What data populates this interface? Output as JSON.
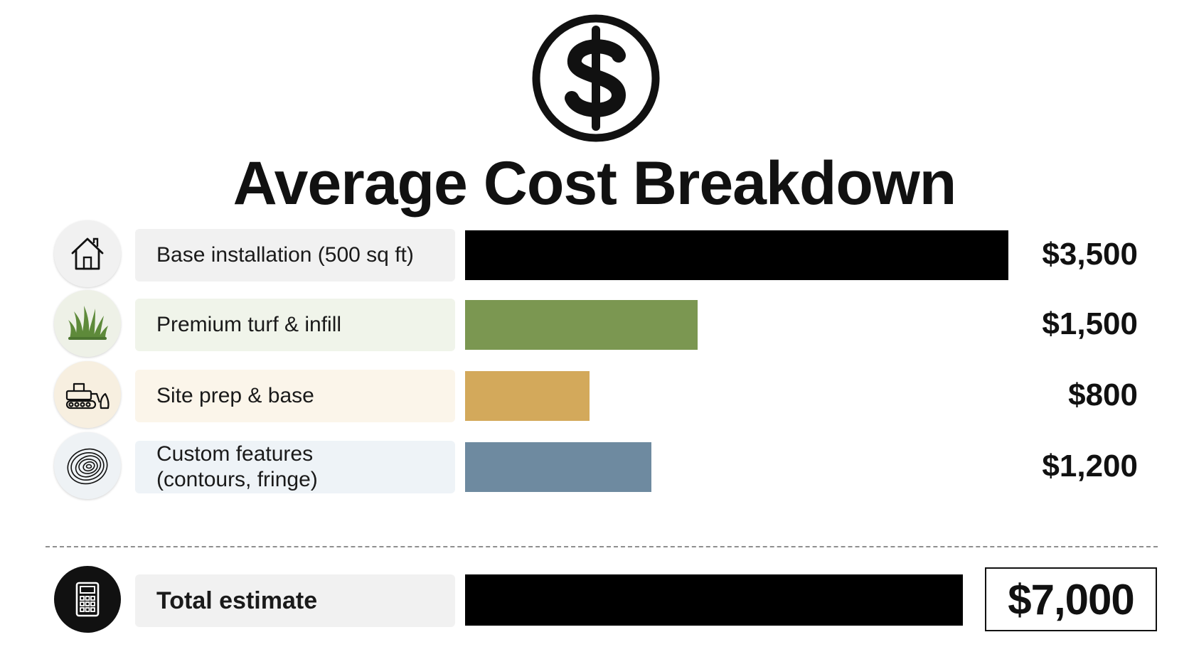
{
  "header": {
    "badge_icon": "dollar-circle-icon",
    "title": "Average Cost Breakdown"
  },
  "chart_data": {
    "type": "bar",
    "orientation": "horizontal",
    "title": "Average Cost Breakdown",
    "xlim": [
      0,
      3500
    ],
    "grid": false,
    "legend": "none",
    "categories": [
      "Base installation (500 sq ft)",
      "Premium turf & infill",
      "Site prep & base",
      "Custom features (contours, fringe)"
    ],
    "values": [
      3500,
      1500,
      800,
      1200
    ],
    "value_labels": [
      "$3,500",
      "$1,500",
      "$800",
      "$1,200"
    ],
    "colors": [
      "#000000",
      "#7b9751",
      "#d3a95b",
      "#6e8aa0"
    ],
    "label_bg_colors": [
      "#f1f1f1",
      "#f0f4ea",
      "#fbf5ea",
      "#eef3f7"
    ],
    "icon_bg_colors": [
      "#f1f1f1",
      "#eef1e7",
      "#f7efe0",
      "#eef2f5"
    ],
    "icons": [
      "house-icon",
      "grass-icon",
      "bulldozer-icon",
      "contour-icon"
    ],
    "label_lines": [
      [
        "Base installation (500 sq ft)"
      ],
      [
        "Premium turf & infill"
      ],
      [
        "Site prep & base"
      ],
      [
        "Custom features",
        "(contours, fringe)"
      ]
    ],
    "total": {
      "label": "Total estimate",
      "value": 7000,
      "value_label": "$7,000",
      "icon": "calculator-icon",
      "color": "#000000"
    }
  }
}
